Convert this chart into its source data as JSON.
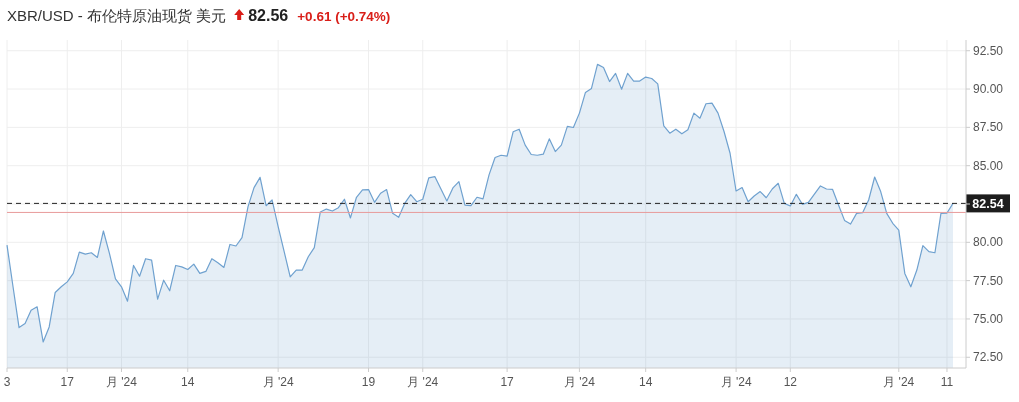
{
  "chart_data": {
    "type": "area",
    "title": "XBR/USD - 布伦特原油现货 美元",
    "annotations": [
      "82.56",
      "+0.61 (+0.74%)"
    ],
    "categories": [
      "3",
      null,
      null,
      null,
      null,
      null,
      null,
      null,
      null,
      null,
      "17",
      null,
      null,
      null,
      null,
      null,
      null,
      null,
      null,
      "月 '24",
      null,
      null,
      null,
      null,
      null,
      null,
      null,
      null,
      null,
      null,
      "14",
      null,
      null,
      null,
      null,
      null,
      null,
      null,
      null,
      null,
      null,
      null,
      null,
      null,
      null,
      "月 '24",
      null,
      null,
      null,
      null,
      null,
      null,
      null,
      null,
      null,
      null,
      null,
      null,
      null,
      null,
      "19",
      null,
      null,
      null,
      null,
      null,
      null,
      null,
      null,
      "月 '24",
      null,
      null,
      null,
      null,
      null,
      null,
      null,
      null,
      null,
      null,
      null,
      null,
      null,
      "17",
      null,
      null,
      null,
      null,
      null,
      null,
      null,
      null,
      null,
      null,
      null,
      "月 '24",
      null,
      null,
      null,
      null,
      null,
      null,
      null,
      null,
      null,
      null,
      "14",
      null,
      null,
      null,
      null,
      null,
      null,
      null,
      null,
      null,
      null,
      null,
      null,
      null,
      null,
      "月 '24",
      null,
      null,
      null,
      null,
      null,
      null,
      null,
      null,
      "12",
      null,
      null,
      null,
      null,
      null,
      null,
      null,
      null,
      null,
      null,
      null,
      null,
      null,
      null,
      null,
      null,
      null,
      "月 '24",
      null,
      null,
      null,
      null,
      null,
      null,
      null,
      "11",
      null
    ],
    "ylim": [
      71.8,
      93.2
    ],
    "yticks": [
      {
        "value": 72.5,
        "label": "72.50"
      },
      {
        "value": 75,
        "label": "75.00"
      },
      {
        "value": 77.5,
        "label": "77.50"
      },
      {
        "value": 80,
        "label": "80.00"
      },
      {
        "value": 82.5,
        "label": null
      },
      {
        "value": 85,
        "label": "85.00"
      },
      {
        "value": 87.5,
        "label": "87.50"
      },
      {
        "value": 90,
        "label": "90.00"
      },
      {
        "value": 92.5,
        "label": "92.50"
      }
    ],
    "grid": true,
    "ref_lines": [
      {
        "axis": "y",
        "value": 82.54,
        "label": "82.54",
        "color": "#222222",
        "line_style": "dashed"
      },
      {
        "axis": "y",
        "value": 81.95,
        "color": "#e89a9a",
        "line_style": "solid"
      }
    ],
    "series": [
      {
        "color": "#6fa1cf",
        "values": [
          79.82,
          77.1,
          74.44,
          74.7,
          75.57,
          75.79,
          73.5,
          74.48,
          76.73,
          77.1,
          77.42,
          77.97,
          79.36,
          79.23,
          79.32,
          79.01,
          80.74,
          79.28,
          77.62,
          77.1,
          76.16,
          78.49,
          77.79,
          78.93,
          78.84,
          76.29,
          77.53,
          76.84,
          78.49,
          78.4,
          78.23,
          78.58,
          77.97,
          78.1,
          78.93,
          78.67,
          78.36,
          79.86,
          79.76,
          80.3,
          82.33,
          83.57,
          84.24,
          82.39,
          82.76,
          81.02,
          79.39,
          77.75,
          78.19,
          78.19,
          79.06,
          79.65,
          81.98,
          82.17,
          82.04,
          82.26,
          82.81,
          81.59,
          82.94,
          83.42,
          83.44,
          82.61,
          83.2,
          83.44,
          81.89,
          81.63,
          82.54,
          83.11,
          82.65,
          82.81,
          84.2,
          84.29,
          83.5,
          82.7,
          83.55,
          83.96,
          82.43,
          82.39,
          82.94,
          82.83,
          84.4,
          85.53,
          85.68,
          85.62,
          87.21,
          87.38,
          86.34,
          85.73,
          85.68,
          85.75,
          86.75,
          85.92,
          86.34,
          87.56,
          87.49,
          88.43,
          89.78,
          90.04,
          91.61,
          91.41,
          90.49,
          91.02,
          89.99,
          91.02,
          90.52,
          90.52,
          90.78,
          90.69,
          90.34,
          87.6,
          87.12,
          87.38,
          87.08,
          87.34,
          88.43,
          88.1,
          89.04,
          89.08,
          88.43,
          87.23,
          85.81,
          83.35,
          83.57,
          82.65,
          83.02,
          83.31,
          82.91,
          83.48,
          83.85,
          82.54,
          82.37,
          83.13,
          82.48,
          82.61,
          83.15,
          83.68,
          83.48,
          83.46,
          82.43,
          81.43,
          81.19,
          81.89,
          81.93,
          82.76,
          84.26,
          83.31,
          81.89,
          81.24,
          80.8,
          77.97,
          77.1,
          78.19,
          79.78,
          79.39,
          79.32,
          81.89,
          81.91,
          82.54
        ]
      }
    ]
  }
}
